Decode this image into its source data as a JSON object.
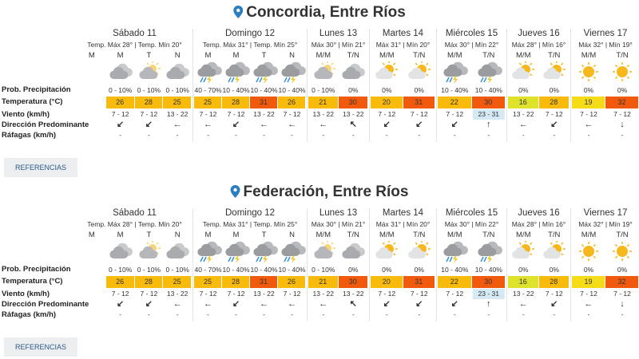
{
  "cities": [
    {
      "title": "Concordia, Entre Ríos",
      "row_labels": [
        "Prob. Precipitación",
        "Temperatura (°C)",
        "Viento (km/h)",
        "Dirección Predominante",
        "Ráfagas (km/h)"
      ],
      "button": "REFERENCIAS",
      "days": [
        {
          "name": "Sábado 11",
          "temps": "Temp. Máx 28° | Temp. Mín 20°",
          "periods": [
            {
              "label": "M"
            },
            {
              "label": "M",
              "precip": "0 - 10%",
              "temp": 26,
              "temp_color": "#f8bb0c",
              "wind": "7 - 12",
              "dir": "↙",
              "gust": "-"
            },
            {
              "label": "T",
              "precip": "0 - 10%",
              "temp": 28,
              "temp_color": "#f8bb0c",
              "wind": "7 - 12",
              "dir": "↙",
              "gust": "-"
            },
            {
              "label": "N",
              "precip": "0 - 10%",
              "temp": 25,
              "temp_color": "#f8bb0c",
              "wind": "13 - 22",
              "dir": "←",
              "gust": "-"
            }
          ]
        },
        {
          "name": "Domingo 12",
          "temps": "Temp. Máx 31° | Temp. Mín 25°",
          "periods": [
            {
              "label": "M",
              "precip": "40 - 70%",
              "temp": 25,
              "temp_color": "#f8bb0c",
              "wind": "7 - 12",
              "dir": "←",
              "gust": "-"
            },
            {
              "label": "M",
              "precip": "10 - 40%",
              "temp": 28,
              "temp_color": "#f8bb0c",
              "wind": "7 - 12",
              "dir": "↙",
              "gust": "-"
            },
            {
              "label": "T",
              "precip": "10 - 40%",
              "temp": 31,
              "temp_color": "#f15a0c",
              "wind": "13 - 22",
              "dir": "←",
              "gust": "-"
            },
            {
              "label": "N",
              "precip": "10 - 40%",
              "temp": 26,
              "temp_color": "#f8bb0c",
              "wind": "7 - 12",
              "dir": "←",
              "gust": "-"
            }
          ]
        },
        {
          "name": "Lunes 13",
          "temps": "Máx 30° | Mín 21°",
          "periods": [
            {
              "label": "M/M",
              "precip": "0 - 10%",
              "temp": 21,
              "temp_color": "#f8bb0c",
              "wind": "13 - 22",
              "dir": "←",
              "gust": "-"
            },
            {
              "label": "T/N",
              "precip": "0%",
              "temp": 30,
              "temp_color": "#f15a0c",
              "wind": "13 - 22",
              "dir": "↖",
              "gust": "-"
            }
          ]
        },
        {
          "name": "Martes 14",
          "temps": "Máx 31° | Mín 20°",
          "periods": [
            {
              "label": "M/M",
              "precip": "0%",
              "temp": 20,
              "temp_color": "#f8bb0c",
              "wind": "7 - 12",
              "dir": "↙",
              "gust": "-"
            },
            {
              "label": "T/N",
              "precip": "0%",
              "temp": 31,
              "temp_color": "#f15a0c",
              "wind": "7 - 12",
              "dir": "↙",
              "gust": "-"
            }
          ]
        },
        {
          "name": "Miércoles 15",
          "temps": "Máx 30° | Mín 22°",
          "periods": [
            {
              "label": "M/M",
              "precip": "10 - 40%",
              "temp": 22,
              "temp_color": "#f8bb0c",
              "wind": "7 - 12",
              "dir": "↙",
              "gust": "-"
            },
            {
              "label": "T/N",
              "precip": "10 - 40%",
              "temp": 30,
              "temp_color": "#f15a0c",
              "wind": "23 - 31",
              "wind_bg": "#d6eaf5",
              "dir": "↑",
              "gust": "-"
            }
          ]
        },
        {
          "name": "Jueves 16",
          "temps": "Máx 28° | Mín 16°",
          "periods": [
            {
              "label": "M/M",
              "precip": "0%",
              "temp": 16,
              "temp_color": "#dfe22a",
              "wind": "13 - 22",
              "dir": "←",
              "gust": "-"
            },
            {
              "label": "T/N",
              "precip": "0%",
              "temp": 28,
              "temp_color": "#f8bb0c",
              "wind": "7 - 12",
              "dir": "↙",
              "gust": "-"
            }
          ]
        },
        {
          "name": "Viernes 17",
          "temps": "Máx 32° | Mín 19°",
          "periods": [
            {
              "label": "M/M",
              "precip": "0%",
              "temp": 19,
              "temp_color": "#f5dc16",
              "wind": "7 - 12",
              "dir": "←",
              "gust": "-"
            },
            {
              "label": "T/N",
              "precip": "0%",
              "temp": 32,
              "temp_color": "#f15a0c",
              "wind": "7 - 12",
              "dir": "↓",
              "gust": "-"
            }
          ]
        }
      ]
    },
    {
      "title": "Federación, Entre Ríos",
      "row_labels": [
        "Prob. Precipitación",
        "Temperatura (°C)",
        "Viento (km/h)",
        "Dirección Predominante",
        "Ráfagas (km/h)"
      ],
      "button": "REFERENCIAS",
      "days": [
        {
          "name": "Sábado 11",
          "temps": "Temp. Máx 28° | Temp. Mín 20°",
          "periods": [
            {
              "label": "M"
            },
            {
              "label": "M",
              "precip": "0 - 10%",
              "temp": 26,
              "temp_color": "#f8bb0c",
              "wind": "7 - 12",
              "dir": "↙",
              "gust": "-"
            },
            {
              "label": "T",
              "precip": "0 - 10%",
              "temp": 28,
              "temp_color": "#f8bb0c",
              "wind": "7 - 12",
              "dir": "↙",
              "gust": "-"
            },
            {
              "label": "N",
              "precip": "0 - 10%",
              "temp": 25,
              "temp_color": "#f8bb0c",
              "wind": "13 - 22",
              "dir": "←",
              "gust": "-"
            }
          ]
        },
        {
          "name": "Domingo 12",
          "temps": "Temp. Máx 31° | Temp. Mín 25°",
          "periods": [
            {
              "label": "M",
              "precip": "40 - 70%",
              "temp": 25,
              "temp_color": "#f8bb0c",
              "wind": "7 - 12",
              "dir": "←",
              "gust": "-"
            },
            {
              "label": "M",
              "precip": "10 - 40%",
              "temp": 28,
              "temp_color": "#f8bb0c",
              "wind": "7 - 12",
              "dir": "↙",
              "gust": "-"
            },
            {
              "label": "T",
              "precip": "10 - 40%",
              "temp": 31,
              "temp_color": "#f15a0c",
              "wind": "13 - 22",
              "dir": "←",
              "gust": "-"
            },
            {
              "label": "N",
              "precip": "10 - 40%",
              "temp": 26,
              "temp_color": "#f8bb0c",
              "wind": "7 - 12",
              "dir": "←",
              "gust": "-"
            }
          ]
        },
        {
          "name": "Lunes 13",
          "temps": "Máx 30° | Mín 21°",
          "periods": [
            {
              "label": "M/M",
              "precip": "0 - 10%",
              "temp": 21,
              "temp_color": "#f8bb0c",
              "wind": "13 - 22",
              "dir": "←",
              "gust": "-"
            },
            {
              "label": "T/N",
              "precip": "0%",
              "temp": 30,
              "temp_color": "#f15a0c",
              "wind": "13 - 22",
              "dir": "↖",
              "gust": "-"
            }
          ]
        },
        {
          "name": "Martes 14",
          "temps": "Máx 31° | Mín 20°",
          "periods": [
            {
              "label": "M/M",
              "precip": "0%",
              "temp": 20,
              "temp_color": "#f8bb0c",
              "wind": "7 - 12",
              "dir": "↙",
              "gust": "-"
            },
            {
              "label": "T/N",
              "precip": "0%",
              "temp": 31,
              "temp_color": "#f15a0c",
              "wind": "7 - 12",
              "dir": "↙",
              "gust": "-"
            }
          ]
        },
        {
          "name": "Miércoles 15",
          "temps": "Máx 30° | Mín 22°",
          "periods": [
            {
              "label": "M/M",
              "precip": "10 - 40%",
              "temp": 22,
              "temp_color": "#f8bb0c",
              "wind": "7 - 12",
              "dir": "↙",
              "gust": "-"
            },
            {
              "label": "T/N",
              "precip": "10 - 40%",
              "temp": 30,
              "temp_color": "#f15a0c",
              "wind": "23 - 31",
              "wind_bg": "#d6eaf5",
              "dir": "↑",
              "gust": "-"
            }
          ]
        },
        {
          "name": "Jueves 16",
          "temps": "Máx 28° | Mín 16°",
          "periods": [
            {
              "label": "M/M",
              "precip": "0%",
              "temp": 16,
              "temp_color": "#dfe22a",
              "wind": "13 - 22",
              "dir": "←",
              "gust": "-"
            },
            {
              "label": "T/N",
              "precip": "0%",
              "temp": 28,
              "temp_color": "#f8bb0c",
              "wind": "7 - 12",
              "dir": "↙",
              "gust": "-"
            }
          ]
        },
        {
          "name": "Viernes 17",
          "temps": "Máx 32° | Mín 19°",
          "periods": [
            {
              "label": "M/M",
              "precip": "0%",
              "temp": 19,
              "temp_color": "#f5dc16",
              "wind": "7 - 12",
              "dir": "←",
              "gust": "-"
            },
            {
              "label": "T/N",
              "precip": "0%",
              "temp": 32,
              "temp_color": "#f15a0c",
              "wind": "7 - 12",
              "dir": "↓",
              "gust": "-"
            }
          ]
        }
      ]
    }
  ]
}
